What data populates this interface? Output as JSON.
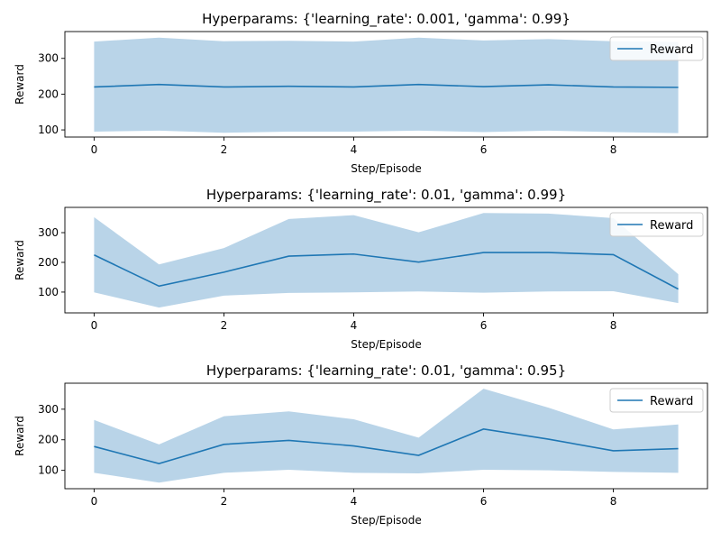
{
  "chart_data": [
    {
      "type": "line",
      "title": "Hyperparams: {'learning_rate': 0.001, 'gamma': 0.99}",
      "xlabel": "Step/Episode",
      "ylabel": "Reward",
      "xlim": [
        -0.45,
        9.45
      ],
      "ylim": [
        80,
        375
      ],
      "xticks": [
        0,
        2,
        4,
        6,
        8
      ],
      "yticks": [
        100,
        200,
        300
      ],
      "grid": false,
      "legend_position": "top-right",
      "colors": {
        "line": "#1f77b4",
        "band": "#b9d4e8"
      },
      "series": [
        {
          "name": "Reward",
          "x": [
            0,
            1,
            2,
            3,
            4,
            5,
            6,
            7,
            8,
            9
          ],
          "mean": [
            220,
            227,
            220,
            222,
            220,
            227,
            221,
            226,
            220,
            219
          ],
          "upper": [
            347,
            358,
            348,
            349,
            347,
            358,
            350,
            354,
            348,
            346
          ],
          "lower": [
            95,
            98,
            92,
            95,
            95,
            98,
            94,
            98,
            94,
            91
          ]
        }
      ]
    },
    {
      "type": "line",
      "title": "Hyperparams: {'learning_rate': 0.01, 'gamma': 0.99}",
      "xlabel": "Step/Episode",
      "ylabel": "Reward",
      "xlim": [
        -0.45,
        9.45
      ],
      "ylim": [
        30,
        385
      ],
      "xticks": [
        0,
        2,
        4,
        6,
        8
      ],
      "yticks": [
        100,
        200,
        300
      ],
      "grid": false,
      "legend_position": "top-right",
      "colors": {
        "line": "#1f77b4",
        "band": "#b9d4e8"
      },
      "series": [
        {
          "name": "Reward",
          "x": [
            0,
            1,
            2,
            3,
            4,
            5,
            6,
            7,
            8,
            9
          ],
          "mean": [
            225,
            120,
            167,
            221,
            228,
            201,
            233,
            233,
            226,
            110
          ],
          "upper": [
            352,
            193,
            248,
            346,
            359,
            301,
            366,
            364,
            349,
            160
          ],
          "lower": [
            99,
            48,
            88,
            97,
            99,
            102,
            98,
            102,
            103,
            63
          ]
        }
      ]
    },
    {
      "type": "line",
      "title": "Hyperparams: {'learning_rate': 0.01, 'gamma': 0.95}",
      "xlabel": "Step/Episode",
      "ylabel": "Reward",
      "xlim": [
        -0.45,
        9.45
      ],
      "ylim": [
        40,
        385
      ],
      "xticks": [
        0,
        2,
        4,
        6,
        8
      ],
      "yticks": [
        100,
        200,
        300
      ],
      "grid": false,
      "legend_position": "top-right",
      "colors": {
        "line": "#1f77b4",
        "band": "#b9d4e8"
      },
      "series": [
        {
          "name": "Reward",
          "x": [
            0,
            1,
            2,
            3,
            4,
            5,
            6,
            7,
            8,
            9
          ],
          "mean": [
            178,
            122,
            185,
            198,
            180,
            149,
            235,
            202,
            164,
            171
          ],
          "upper": [
            265,
            185,
            277,
            293,
            267,
            207,
            367,
            305,
            234,
            250
          ],
          "lower": [
            92,
            60,
            92,
            102,
            92,
            90,
            102,
            100,
            95,
            92
          ]
        }
      ]
    }
  ]
}
